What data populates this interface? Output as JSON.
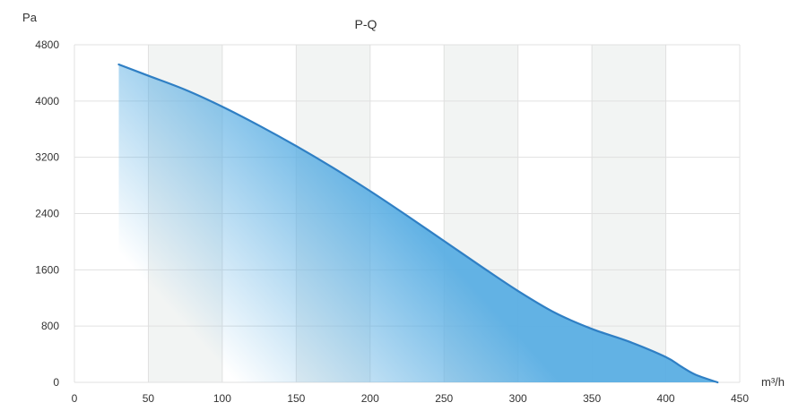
{
  "chart_data": {
    "type": "area",
    "title": "P-Q",
    "xlabel": "m³/h",
    "ylabel": "Pa",
    "xlim": [
      0,
      450
    ],
    "ylim": [
      0,
      4800
    ],
    "x_ticks": [
      0,
      50,
      100,
      150,
      200,
      250,
      300,
      350,
      400,
      450
    ],
    "y_ticks": [
      0,
      800,
      1600,
      2400,
      3200,
      4000,
      4800
    ],
    "grid": true,
    "legend": "none",
    "band_intervals": [
      [
        50,
        100
      ],
      [
        150,
        200
      ],
      [
        250,
        300
      ],
      [
        350,
        400
      ]
    ],
    "series": [
      {
        "x": [
          30,
          50,
          75,
          100,
          125,
          150,
          175,
          200,
          225,
          250,
          275,
          300,
          325,
          350,
          375,
          400,
          410,
          420,
          435
        ],
        "y": [
          4520,
          4360,
          4160,
          3920,
          3650,
          3360,
          3050,
          2720,
          2370,
          2010,
          1650,
          1300,
          990,
          760,
          580,
          360,
          230,
          110,
          0
        ]
      }
    ],
    "colors": {
      "line": "#2f7fc4",
      "fill": "#5aaee3",
      "band": "#f2f4f3",
      "grid": "#e0e0e0"
    }
  }
}
